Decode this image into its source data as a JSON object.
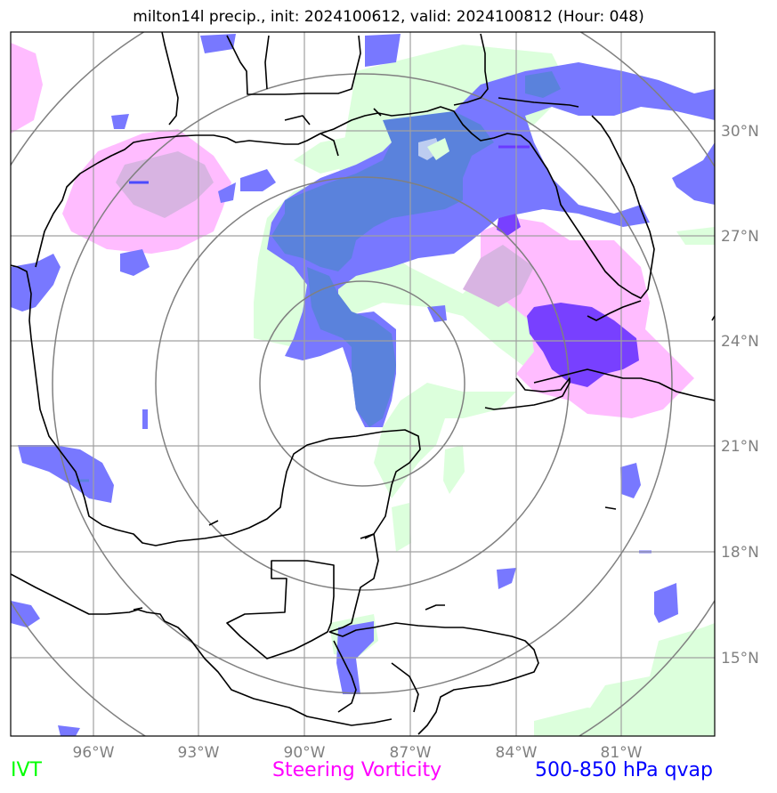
{
  "title": "milton14l precip., init: 2024100612, valid: 2024100812 (Hour: 048)",
  "axes": {
    "lon_ticks": [
      "96°W",
      "93°W",
      "90°W",
      "87°W",
      "84°W",
      "81°W"
    ],
    "lat_ticks": [
      "30°N",
      "27°N",
      "24°N",
      "21°N",
      "18°N",
      "15°N"
    ]
  },
  "legend": {
    "ivt": "IVT",
    "steering_vorticity": "Steering Vorticity",
    "qvap": "500-850 hPa qvap"
  },
  "colors": {
    "ivt": "#00ff00",
    "steering_vorticity": "#ff00ff",
    "qvap": "#0000ff",
    "ivt_fill": "#dcffdc",
    "vort_fill": "#ffbcff",
    "qvap_fill": "#7878ff",
    "grid": "#a0a0a0",
    "range_rings": "#808080",
    "coastline": "#000000",
    "tick_labels": "#808080"
  },
  "map": {
    "projection": "lat/lon",
    "lon_range": [
      -98.7,
      -78.7
    ],
    "lat_range": [
      12.8,
      33.3
    ],
    "gridlines": true,
    "range_rings": 4
  }
}
